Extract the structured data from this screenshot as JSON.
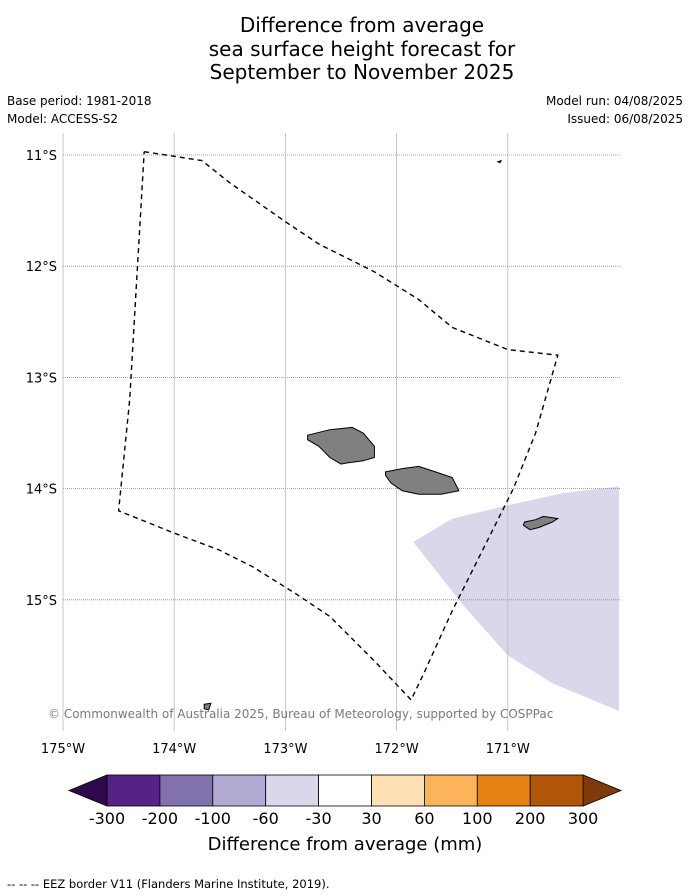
{
  "title": {
    "line1": "Difference from average",
    "line2": "sea surface height forecast for",
    "line3": "September to November 2025"
  },
  "meta": {
    "base_period": "Base period: 1981-2018",
    "model": "Model: ACCESS-S2",
    "model_run": "Model run: 04/08/2025",
    "issued": "Issued: 06/08/2025"
  },
  "map": {
    "lon_range": [
      -175.0,
      -170.0
    ],
    "lat_range": [
      -16.05,
      -10.8
    ],
    "lat_ticks": [
      {
        "value": -11,
        "label": "11°S"
      },
      {
        "value": -12,
        "label": "12°S"
      },
      {
        "value": -13,
        "label": "13°S"
      },
      {
        "value": -14,
        "label": "14°S"
      },
      {
        "value": -15,
        "label": "15°S"
      }
    ],
    "lon_ticks": [
      {
        "value": -175,
        "label": "175°W"
      },
      {
        "value": -174,
        "label": "174°W"
      },
      {
        "value": -173,
        "label": "173°W"
      },
      {
        "value": -172,
        "label": "172°W"
      },
      {
        "value": -171,
        "label": "171°W"
      }
    ],
    "copyright": "© Commonwealth of Australia 2025, Bureau of Meteorology, supported by COSPPac",
    "eez_border": [
      [
        -174.27,
        -10.97
      ],
      [
        -173.75,
        -11.05
      ],
      [
        -173.5,
        -11.25
      ],
      [
        -173.0,
        -11.6
      ],
      [
        -172.7,
        -11.8
      ],
      [
        -172.2,
        -12.05
      ],
      [
        -171.8,
        -12.3
      ],
      [
        -171.5,
        -12.55
      ],
      [
        -171.25,
        -12.65
      ],
      [
        -171.0,
        -12.75
      ],
      [
        -170.55,
        -12.8
      ],
      [
        -170.75,
        -13.5
      ],
      [
        -170.95,
        -14.0
      ],
      [
        -171.2,
        -14.5
      ],
      [
        -171.5,
        -15.1
      ],
      [
        -171.75,
        -15.65
      ],
      [
        -171.87,
        -15.9
      ],
      [
        -172.2,
        -15.55
      ],
      [
        -172.6,
        -15.15
      ],
      [
        -172.9,
        -14.95
      ],
      [
        -173.3,
        -14.7
      ],
      [
        -173.6,
        -14.55
      ],
      [
        -174.0,
        -14.4
      ],
      [
        -174.5,
        -14.2
      ],
      [
        -174.4,
        -13.2
      ],
      [
        -174.27,
        -10.97
      ]
    ],
    "anomaly_region": {
      "color": "#d8d8ea",
      "points": [
        [
          -171.85,
          -14.48
        ],
        [
          -171.5,
          -14.27
        ],
        [
          -171.0,
          -14.15
        ],
        [
          -170.5,
          -14.04
        ],
        [
          -170.0,
          -13.98
        ],
        [
          -170.0,
          -16.0
        ],
        [
          -170.6,
          -15.75
        ],
        [
          -171.0,
          -15.5
        ],
        [
          -171.4,
          -15.05
        ],
        [
          -171.85,
          -14.48
        ]
      ]
    },
    "islands": [
      {
        "name": "Savai'i",
        "points": [
          [
            -172.8,
            -13.52
          ],
          [
            -172.6,
            -13.47
          ],
          [
            -172.4,
            -13.45
          ],
          [
            -172.3,
            -13.5
          ],
          [
            -172.2,
            -13.62
          ],
          [
            -172.2,
            -13.72
          ],
          [
            -172.3,
            -13.75
          ],
          [
            -172.45,
            -13.77
          ],
          [
            -172.5,
            -13.78
          ],
          [
            -172.6,
            -13.72
          ],
          [
            -172.7,
            -13.62
          ],
          [
            -172.8,
            -13.56
          ]
        ]
      },
      {
        "name": "Upolu",
        "points": [
          [
            -172.1,
            -13.85
          ],
          [
            -171.95,
            -13.82
          ],
          [
            -171.8,
            -13.8
          ],
          [
            -171.65,
            -13.85
          ],
          [
            -171.5,
            -13.9
          ],
          [
            -171.44,
            -14.02
          ],
          [
            -171.6,
            -14.05
          ],
          [
            -171.8,
            -14.05
          ],
          [
            -171.95,
            -14.02
          ],
          [
            -172.05,
            -13.95
          ],
          [
            -172.1,
            -13.88
          ]
        ]
      },
      {
        "name": "Tutuila",
        "points": [
          [
            -170.85,
            -14.3
          ],
          [
            -170.75,
            -14.28
          ],
          [
            -170.68,
            -14.25
          ],
          [
            -170.55,
            -14.27
          ],
          [
            -170.6,
            -14.3
          ],
          [
            -170.72,
            -14.35
          ],
          [
            -170.8,
            -14.37
          ],
          [
            -170.86,
            -14.33
          ]
        ]
      },
      {
        "name": "Swains Island",
        "points": [
          [
            -171.09,
            -11.06
          ],
          [
            -171.06,
            -11.05
          ],
          [
            -171.07,
            -11.07
          ]
        ]
      },
      {
        "name": "Niuafo'ou",
        "points": [
          [
            -173.73,
            -15.94
          ],
          [
            -173.67,
            -15.93
          ],
          [
            -173.69,
            -15.99
          ],
          [
            -173.73,
            -15.98
          ]
        ]
      }
    ]
  },
  "colorbar": {
    "label": "Difference from average (mm)",
    "tick_labels": [
      "-300",
      "-200",
      "-100",
      "-60",
      "-30",
      "30",
      "60",
      "100",
      "200",
      "300"
    ],
    "colors": [
      "#552385",
      "#8171ac",
      "#b1a9d2",
      "#d8d8ea",
      "#ffffff",
      "#ffe0b4",
      "#fbb45a",
      "#e48314",
      "#b15608"
    ],
    "extend_low_color": "#2e0a4c",
    "extend_high_color": "#7d3a0a"
  },
  "footnote": "--  --  -- EEZ border V11 (Flanders Marine Institute, 2019)."
}
